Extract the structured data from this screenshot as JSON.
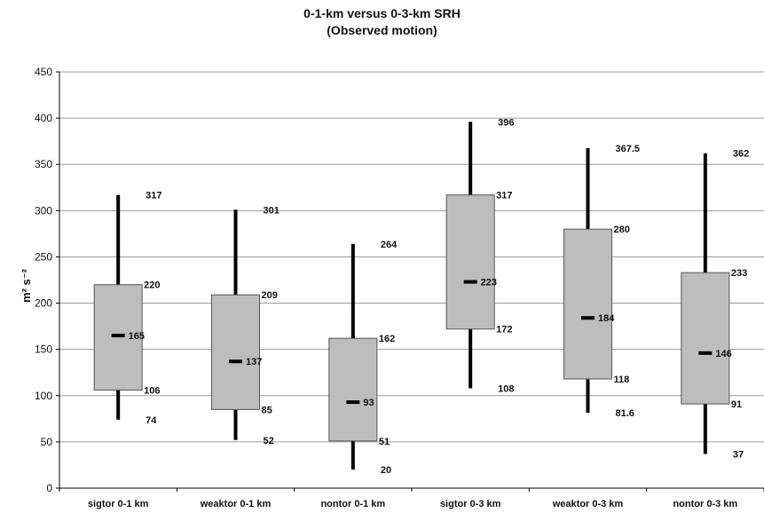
{
  "chart_data": {
    "type": "boxplot",
    "title": "0-1-km versus 0-3-km SRH",
    "subtitle": "(Observed motion)",
    "ylabel": "m² s⁻²",
    "ylim": [
      0,
      450
    ],
    "yticks": [
      0,
      50,
      100,
      150,
      200,
      250,
      300,
      350,
      400,
      450
    ],
    "grid": true,
    "colors": {
      "box": "#bdbdbd",
      "whisker": "#000000",
      "grid": "#9a9a9a"
    },
    "categories": [
      "sigtor 0-1 km",
      "weaktor 0-1 km",
      "nontor 0-1 km",
      "sigtor 0-3 km",
      "weaktor 0-3 km",
      "nontor 0-3 km"
    ],
    "boxes": [
      {
        "low": 74,
        "q1": 106,
        "median": 165,
        "q3": 220,
        "high": 317,
        "labels": {
          "low": "74",
          "q1": "106",
          "median": "165",
          "q3": "220",
          "high": "317"
        }
      },
      {
        "low": 52,
        "q1": 85,
        "median": 137,
        "q3": 209,
        "high": 301,
        "labels": {
          "low": "52",
          "q1": "85",
          "median": "137",
          "q3": "209",
          "high": "301"
        }
      },
      {
        "low": 20,
        "q1": 51,
        "median": 93,
        "q3": 162,
        "high": 264,
        "labels": {
          "low": "20",
          "q1": "51",
          "median": "93",
          "q3": "162",
          "high": "264"
        }
      },
      {
        "low": 108,
        "q1": 172,
        "median": 223,
        "q3": 317,
        "high": 396,
        "labels": {
          "low": "108",
          "q1": "172",
          "median": "223",
          "q3": "317",
          "high": "396"
        }
      },
      {
        "low": 81.6,
        "q1": 118,
        "median": 184,
        "q3": 280,
        "high": 367.5,
        "labels": {
          "low": "81.6",
          "q1": "118",
          "median": "184",
          "q3": "280",
          "high": "367.5"
        }
      },
      {
        "low": 37,
        "q1": 91,
        "median": 146,
        "q3": 233,
        "high": 362,
        "labels": {
          "low": "37",
          "q1": "91",
          "median": "146",
          "q3": "233",
          "high": "362"
        }
      }
    ]
  }
}
